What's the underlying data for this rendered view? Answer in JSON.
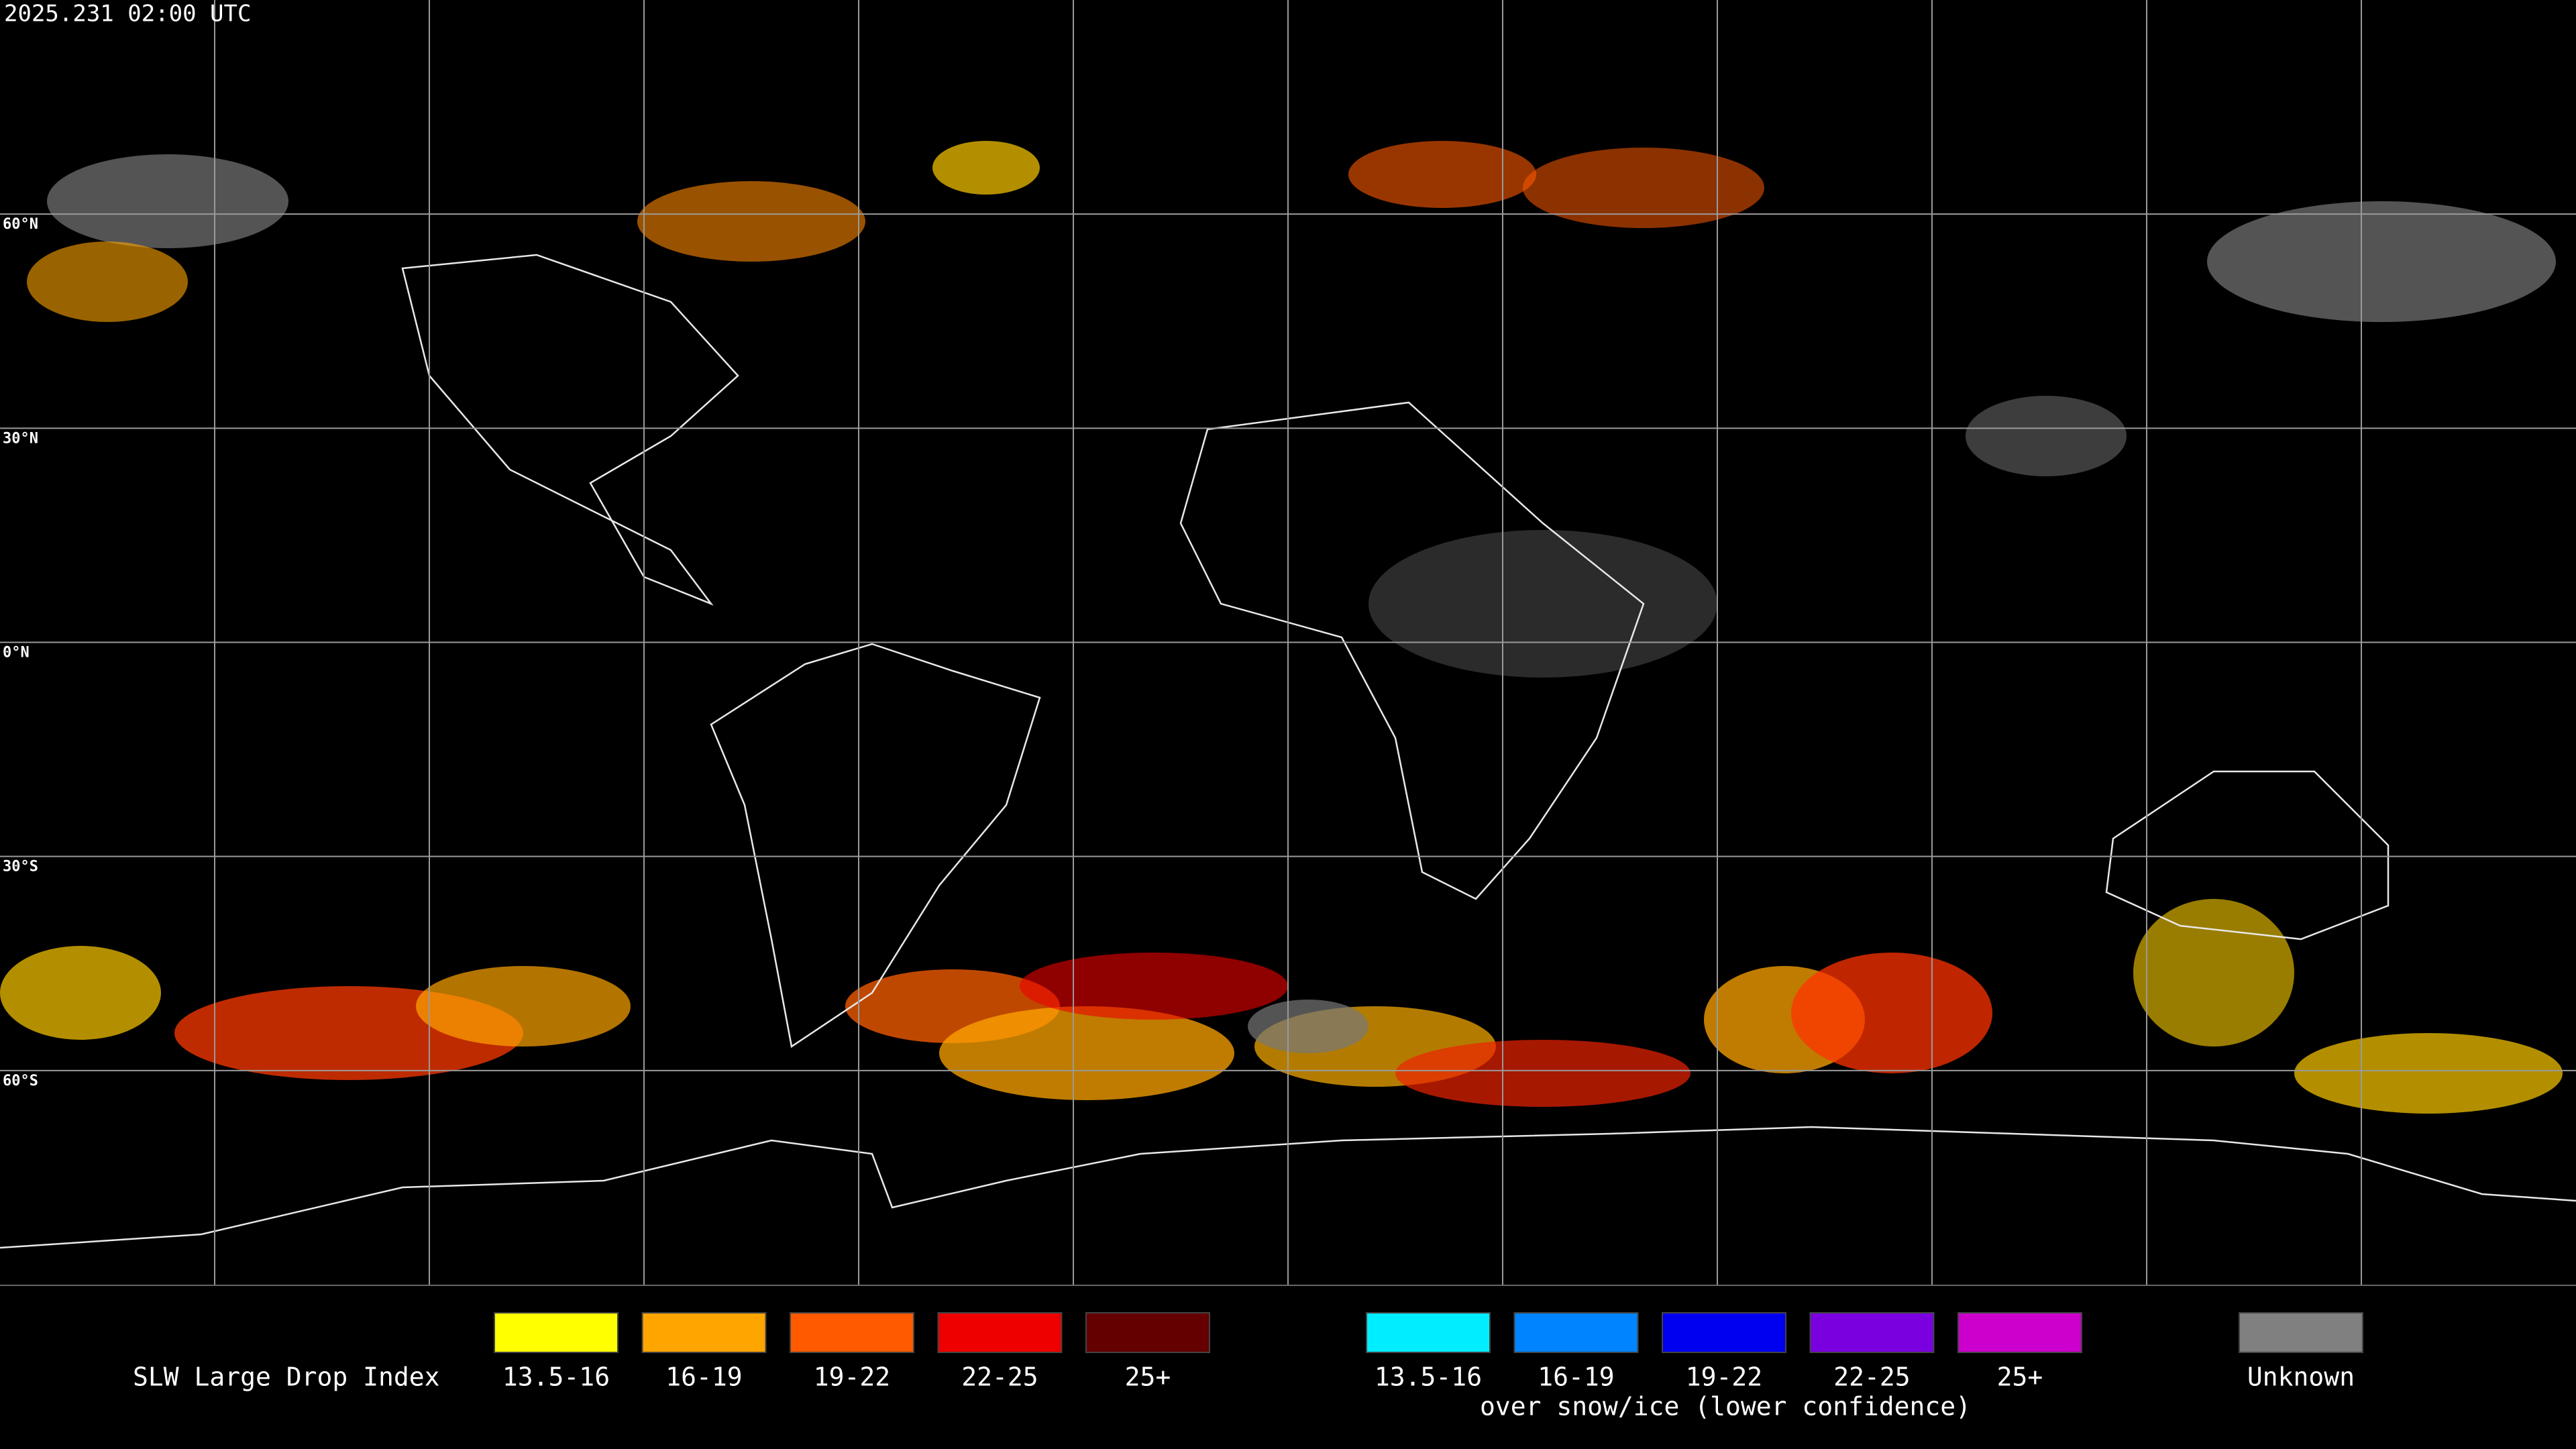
{
  "header": {
    "timestamp": "2025.231 02:00 UTC"
  },
  "map": {
    "latitude_labels": [
      "60°N",
      "30°N",
      "0°N",
      "30°S",
      "60°S"
    ]
  },
  "legend": {
    "title": "SLW Large Drop Index",
    "items": [
      {
        "label": "13.5-16",
        "color": "#ffff00"
      },
      {
        "label": "16-19",
        "color": "#ffa500"
      },
      {
        "label": "19-22",
        "color": "#ff5a00"
      },
      {
        "label": "22-25",
        "color": "#ee0000"
      },
      {
        "label": "25+",
        "color": "#650000"
      }
    ],
    "snow_ice_items": [
      {
        "label": "13.5-16",
        "color": "#00eeff"
      },
      {
        "label": "16-19",
        "color": "#0084ff"
      },
      {
        "label": "19-22",
        "color": "#0000f0"
      },
      {
        "label": "22-25",
        "color": "#7a00e0"
      },
      {
        "label": "25+",
        "color": "#cc00cc"
      }
    ],
    "snow_ice_caption": "over snow/ice (lower confidence)",
    "unknown": {
      "label": "Unknown",
      "color": "#808080"
    }
  }
}
